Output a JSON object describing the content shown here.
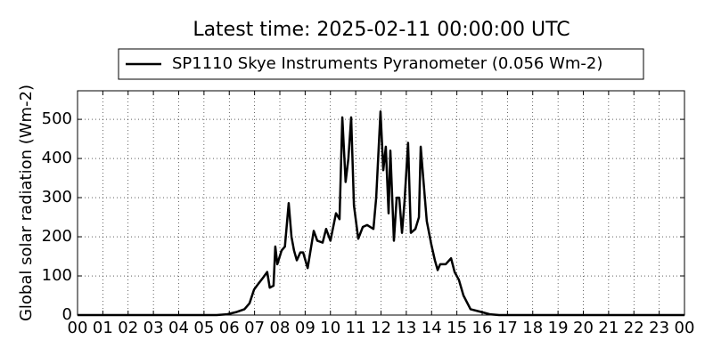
{
  "chart_data": {
    "type": "line",
    "title": "Latest time: 2025-02-11 00:00:00 UTC",
    "y_label": "Global solar radiation (Wm-2)",
    "x": [
      0,
      5.5,
      5.92,
      6.3,
      6.6,
      6.8,
      6.98,
      7.15,
      7.33,
      7.5,
      7.6,
      7.75,
      7.82,
      7.9,
      8.07,
      8.2,
      8.35,
      8.46,
      8.56,
      8.67,
      8.81,
      8.92,
      9.1,
      9.34,
      9.48,
      9.69,
      9.83,
      10.0,
      10.22,
      10.36,
      10.47,
      10.6,
      10.71,
      10.82,
      10.93,
      11.1,
      11.28,
      11.45,
      11.7,
      11.81,
      11.98,
      12.09,
      12.19,
      12.3,
      12.37,
      12.51,
      12.62,
      12.72,
      12.83,
      12.93,
      13.07,
      13.18,
      13.36,
      13.5,
      13.57,
      13.67,
      13.81,
      13.99,
      14.13,
      14.24,
      14.34,
      14.56,
      14.77,
      14.91,
      15.08,
      15.26,
      15.54,
      15.96,
      16.3,
      16.67,
      24
    ],
    "series": [
      {
        "name": "SP1110 Skye Instruments Pyranometer (0.056 Wm-2)",
        "color": "#000000",
        "values": [
          0,
          0,
          2,
          8,
          15,
          30,
          65,
          80,
          95,
          110,
          70,
          75,
          175,
          130,
          165,
          175,
          286,
          200,
          165,
          140,
          160,
          160,
          120,
          215,
          190,
          185,
          220,
          190,
          260,
          245,
          505,
          340,
          400,
          505,
          280,
          195,
          225,
          230,
          220,
          300,
          520,
          370,
          430,
          260,
          420,
          190,
          300,
          300,
          210,
          290,
          440,
          210,
          220,
          250,
          430,
          350,
          240,
          180,
          140,
          115,
          130,
          130,
          145,
          110,
          90,
          50,
          15,
          8,
          2,
          0,
          0
        ]
      }
    ],
    "xlim": [
      0,
      24
    ],
    "xticks": [
      {
        "value": 0,
        "label": "00"
      },
      {
        "value": 1,
        "label": "01"
      },
      {
        "value": 2,
        "label": "02"
      },
      {
        "value": 3,
        "label": "03"
      },
      {
        "value": 4,
        "label": "04"
      },
      {
        "value": 5,
        "label": "05"
      },
      {
        "value": 6,
        "label": "06"
      },
      {
        "value": 7,
        "label": "07"
      },
      {
        "value": 8,
        "label": "08"
      },
      {
        "value": 9,
        "label": "09"
      },
      {
        "value": 10,
        "label": "10"
      },
      {
        "value": 11,
        "label": "11"
      },
      {
        "value": 12,
        "label": "12"
      },
      {
        "value": 13,
        "label": "13"
      },
      {
        "value": 14,
        "label": "14"
      },
      {
        "value": 15,
        "label": "15"
      },
      {
        "value": 16,
        "label": "16"
      },
      {
        "value": 17,
        "label": "17"
      },
      {
        "value": 18,
        "label": "18"
      },
      {
        "value": 19,
        "label": "19"
      },
      {
        "value": 20,
        "label": "20"
      },
      {
        "value": 21,
        "label": "21"
      },
      {
        "value": 22,
        "label": "22"
      },
      {
        "value": 23,
        "label": "23"
      },
      {
        "value": 24,
        "label": "00"
      }
    ],
    "ylim": [
      0,
      573
    ],
    "yticks": [
      0,
      100,
      200,
      300,
      400,
      500
    ],
    "grid": true,
    "legend": "top"
  }
}
